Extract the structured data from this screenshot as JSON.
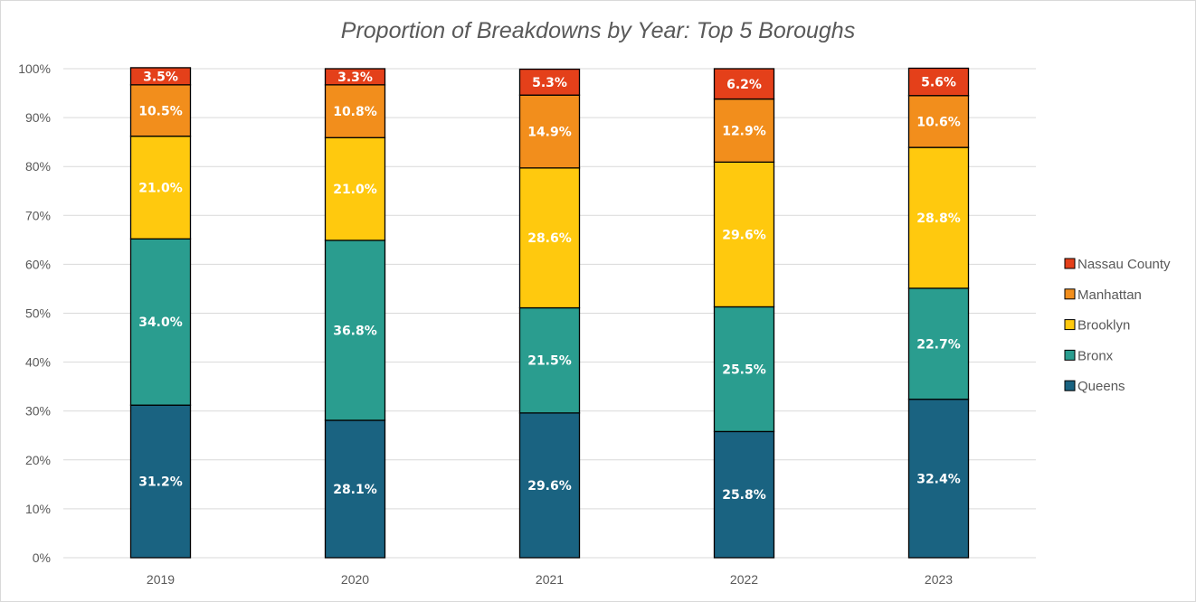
{
  "chart_data": {
    "type": "bar",
    "stacked": true,
    "title": "Proportion of Breakdowns by Year: Top 5 Boroughs",
    "xlabel": "",
    "ylabel": "",
    "categories": [
      "2019",
      "2020",
      "2021",
      "2022",
      "2023"
    ],
    "ylim": [
      0,
      100
    ],
    "y_ticks": [
      "0%",
      "10%",
      "20%",
      "30%",
      "40%",
      "50%",
      "60%",
      "70%",
      "80%",
      "90%",
      "100%"
    ],
    "grid": true,
    "legend_position": "right",
    "series": [
      {
        "name": "Queens",
        "color": "#1a6381",
        "values": [
          31.2,
          28.1,
          29.6,
          25.8,
          32.4
        ],
        "labels": [
          "31.2%",
          "28.1%",
          "29.6%",
          "25.8%",
          "32.4%"
        ]
      },
      {
        "name": "Bronx",
        "color": "#2a9d8f",
        "values": [
          34.0,
          36.8,
          21.5,
          25.5,
          22.7
        ],
        "labels": [
          "34.0%",
          "36.8%",
          "21.5%",
          "25.5%",
          "22.7%"
        ]
      },
      {
        "name": "Brooklyn",
        "color": "#ffc90e",
        "values": [
          21.0,
          21.0,
          28.6,
          29.6,
          28.8
        ],
        "labels": [
          "21.0%",
          "21.0%",
          "28.6%",
          "29.6%",
          "28.8%"
        ]
      },
      {
        "name": "Manhattan",
        "color": "#f28e1c",
        "values": [
          10.5,
          10.8,
          14.9,
          12.9,
          10.6
        ],
        "labels": [
          "10.5%",
          "10.8%",
          "14.9%",
          "12.9%",
          "10.6%"
        ]
      },
      {
        "name": "Nassau County",
        "color": "#e4401a",
        "values": [
          3.5,
          3.3,
          5.3,
          6.2,
          5.6
        ],
        "labels": [
          "3.5%",
          "3.3%",
          "5.3%",
          "6.2%",
          "5.6%"
        ]
      }
    ]
  }
}
